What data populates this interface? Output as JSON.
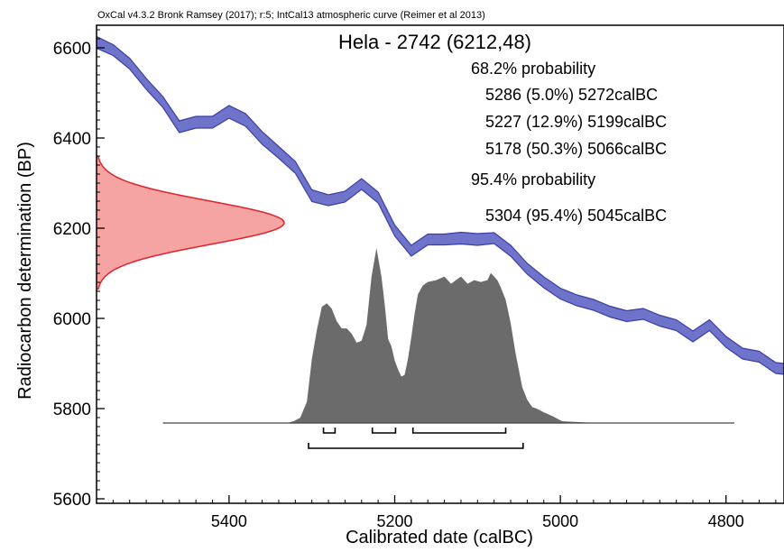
{
  "chart_data": {
    "type": "area",
    "header": "OxCal v4.3.2 Bronk Ramsey (2017); r:5; IntCal13 atmospheric curve (Reimer et al 2013)",
    "title": "Hela - 2742 (6212,48)",
    "xlabel": "Calibrated date (calBC)",
    "ylabel": "Radiocarbon determination (BP)",
    "xlim": [
      5560,
      4730
    ],
    "ylim": [
      5590,
      6650
    ],
    "x_ticks": [
      5400,
      5200,
      5000,
      4800
    ],
    "x_tick_labels": [
      "5400",
      "5200",
      "5000",
      "4800"
    ],
    "y_ticks": [
      5600,
      5800,
      6000,
      6200,
      6400,
      6600
    ],
    "y_tick_labels": [
      "5600",
      "5800",
      "6000",
      "6200",
      "6400",
      "6600"
    ],
    "colors": {
      "calibration_curve": "#6f73c9",
      "calibration_curve_edge": "#3a3fa6",
      "radiocarbon_fill": "#f6a3a3",
      "radiocarbon_line": "#e0242a",
      "posterior_fill": "#6b6b6b"
    },
    "probability_text": [
      "68.2% probability",
      "5286 (5.0%) 5272calBC",
      "5227 (12.9%) 5199calBC",
      "5178 (50.3%) 5066calBC",
      "95.4% probability",
      "5304 (95.4%) 5045calBC"
    ],
    "calibration_curve": {
      "x": [
        5560,
        5540,
        5520,
        5500,
        5480,
        5460,
        5440,
        5420,
        5400,
        5380,
        5360,
        5340,
        5320,
        5300,
        5280,
        5260,
        5240,
        5220,
        5200,
        5180,
        5160,
        5140,
        5120,
        5100,
        5080,
        5060,
        5040,
        5020,
        5000,
        4980,
        4960,
        4940,
        4920,
        4900,
        4880,
        4860,
        4840,
        4820,
        4800,
        4780,
        4760,
        4740,
        4730
      ],
      "mean": [
        6612,
        6595,
        6565,
        6520,
        6480,
        6425,
        6435,
        6435,
        6458,
        6440,
        6400,
        6368,
        6335,
        6272,
        6262,
        6270,
        6298,
        6268,
        6195,
        6150,
        6175,
        6175,
        6178,
        6175,
        6178,
        6150,
        6110,
        6080,
        6055,
        6040,
        6030,
        6015,
        6005,
        6010,
        5995,
        5985,
        5960,
        5985,
        5948,
        5922,
        5915,
        5890,
        5888
      ],
      "sigma": [
        13,
        12,
        12,
        12,
        12,
        13,
        13,
        13,
        14,
        14,
        14,
        13,
        13,
        13,
        12,
        12,
        12,
        12,
        12,
        12,
        12,
        12,
        13,
        13,
        12,
        12,
        12,
        12,
        12,
        12,
        12,
        12,
        12,
        12,
        12,
        12,
        12,
        12,
        12,
        12,
        12,
        12,
        12
      ]
    },
    "radiocarbon_date": {
      "mean": 6212,
      "sigma": 48
    },
    "posterior": {
      "x": [
        5480,
        5330,
        5322,
        5314,
        5306,
        5300,
        5294,
        5288,
        5282,
        5276,
        5270,
        5264,
        5258,
        5252,
        5246,
        5240,
        5234,
        5228,
        5222,
        5216,
        5212,
        5208,
        5204,
        5200,
        5196,
        5192,
        5188,
        5184,
        5180,
        5176,
        5172,
        5166,
        5160,
        5150,
        5140,
        5132,
        5126,
        5120,
        5112,
        5104,
        5096,
        5088,
        5084,
        5080,
        5076,
        5072,
        5066,
        5060,
        5054,
        5046,
        5040,
        5034,
        5028,
        5020,
        5010,
        4998,
        4970,
        4940,
        4790
      ],
      "y": [
        0,
        0,
        1,
        3,
        12,
        36,
        52,
        65,
        67,
        64,
        57,
        53,
        53,
        50,
        45,
        46,
        55,
        82,
        98,
        82,
        66,
        47,
        43,
        35,
        30,
        26,
        27,
        36,
        48,
        61,
        72,
        77,
        79,
        80,
        82,
        78,
        80,
        82,
        78,
        80,
        79,
        80,
        84,
        82,
        80,
        76,
        69,
        56,
        39,
        20,
        13,
        9,
        8,
        6,
        4,
        1,
        0.3,
        0,
        0
      ]
    },
    "ranges": [
      {
        "level": "68.2",
        "from": 5286,
        "to": 5272
      },
      {
        "level": "68.2",
        "from": 5227,
        "to": 5199
      },
      {
        "level": "68.2",
        "from": 5178,
        "to": 5066
      },
      {
        "level": "95.4",
        "from": 5304,
        "to": 5045
      }
    ]
  }
}
